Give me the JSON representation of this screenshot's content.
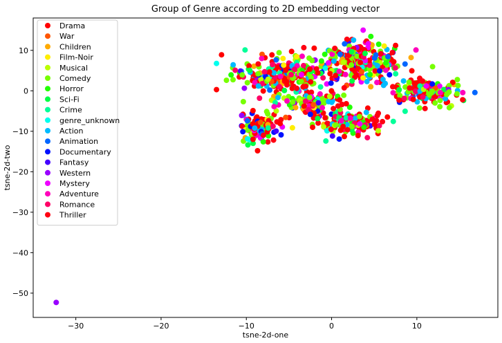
{
  "chart_data": {
    "type": "scatter",
    "title": "Group of Genre according to 2D embedding vector",
    "xlabel": "tsne-2d-one",
    "ylabel": "tsne-2d-two",
    "xlim": [
      -35,
      19.5
    ],
    "ylim": [
      -56,
      18
    ],
    "xticks": [
      -30,
      -20,
      -10,
      0,
      10
    ],
    "yticks": [
      10,
      0,
      -10,
      -20,
      -30,
      -40,
      -50
    ],
    "xtick_labels": [
      "−30",
      "−20",
      "−10",
      "0",
      "10"
    ],
    "ytick_labels": [
      "10",
      "0",
      "−10",
      "−20",
      "−30",
      "−40",
      "−50"
    ],
    "grid": false,
    "legend_position": "top-left",
    "series": [
      {
        "name": "Drama",
        "color": "#ff0000"
      },
      {
        "name": "War",
        "color": "#ff5500"
      },
      {
        "name": "Children",
        "color": "#ffaa00"
      },
      {
        "name": "Film-Noir",
        "color": "#ffee00"
      },
      {
        "name": "Musical",
        "color": "#bbff00"
      },
      {
        "name": "Comedy",
        "color": "#77ff00"
      },
      {
        "name": "Horror",
        "color": "#22ff00"
      },
      {
        "name": "Sci-Fi",
        "color": "#00ff44"
      },
      {
        "name": "Crime",
        "color": "#00ff99"
      },
      {
        "name": "genre_unknown",
        "color": "#00ffee"
      },
      {
        "name": "Action",
        "color": "#00bbff"
      },
      {
        "name": "Animation",
        "color": "#0066ff"
      },
      {
        "name": "Documentary",
        "color": "#0011ff"
      },
      {
        "name": "Fantasy",
        "color": "#4400ff"
      },
      {
        "name": "Western",
        "color": "#9900ff"
      },
      {
        "name": "Mystery",
        "color": "#ee00ff"
      },
      {
        "name": "Adventure",
        "color": "#ff00bb"
      },
      {
        "name": "Romance",
        "color": "#ff0066"
      },
      {
        "name": "Thriller",
        "color": "#ff0011"
      }
    ],
    "clusters": [
      {
        "center": [
          -6,
          4
        ],
        "spread": [
          4.5,
          4
        ],
        "count": 260
      },
      {
        "center": [
          3,
          7
        ],
        "spread": [
          4.5,
          4.5
        ],
        "count": 260
      },
      {
        "center": [
          11,
          0
        ],
        "spread": [
          3.5,
          2.5
        ],
        "count": 150
      },
      {
        "center": [
          -8.5,
          -9
        ],
        "spread": [
          2,
          3
        ],
        "count": 110
      },
      {
        "center": [
          2,
          -8
        ],
        "spread": [
          3.5,
          2.5
        ],
        "count": 150
      },
      {
        "center": [
          -2,
          -3
        ],
        "spread": [
          3,
          2.5
        ],
        "count": 100
      }
    ],
    "outlier": {
      "x": -32.3,
      "y": -52.3,
      "series": "Western"
    }
  }
}
